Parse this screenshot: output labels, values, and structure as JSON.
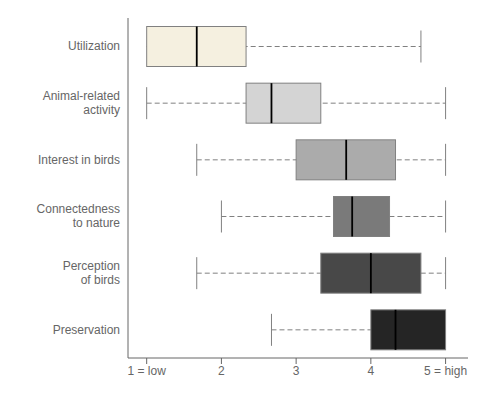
{
  "chart_data": {
    "type": "box",
    "orientation": "horizontal",
    "categories": [
      "Utilization",
      "Animal-related\nactivity",
      "Interest in birds",
      "Connectedness\nto nature",
      "Perception\nof birds",
      "Preservation"
    ],
    "q1": [
      1.0,
      2.33,
      3.0,
      3.5,
      3.33,
      4.0
    ],
    "median": [
      1.67,
      2.67,
      3.67,
      3.75,
      4.0,
      4.33
    ],
    "q3": [
      2.33,
      3.33,
      4.33,
      4.25,
      4.67,
      5.0
    ],
    "whisker_low": [
      1.0,
      1.0,
      1.67,
      2.0,
      1.67,
      2.67
    ],
    "whisker_high": [
      4.67,
      5.0,
      5.0,
      5.0,
      5.0,
      5.0
    ],
    "colors": [
      "#f5f0e0",
      "#d4d4d4",
      "#ababab",
      "#7a7a7a",
      "#484848",
      "#252525"
    ],
    "line_style": "dashed",
    "xlim": [
      0.75,
      5.3
    ],
    "xticks": [
      {
        "value": 1,
        "label": "1 = low"
      },
      2,
      3,
      4,
      {
        "value": 5,
        "label": "5 = high"
      }
    ],
    "grid": false
  }
}
